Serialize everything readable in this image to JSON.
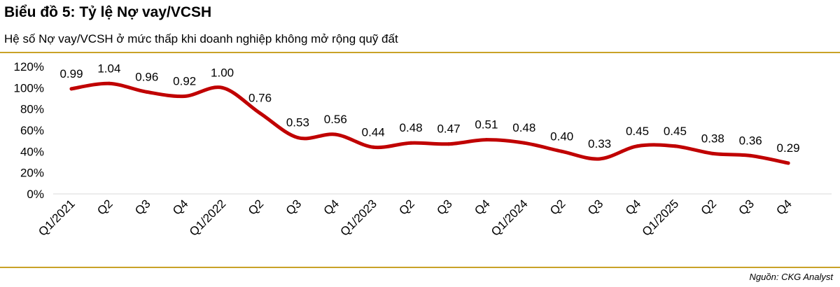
{
  "title": "Biểu đồ 5: Tỷ lệ Nợ vay/VCSH",
  "subtitle": "Hệ số Nợ vay/VCSH ở mức thấp khi doanh nghiệp không mở rộng quỹ đất",
  "source": "Nguồn: CKG Analyst",
  "colors": {
    "line": "#c00000",
    "rule": "#c9a227"
  },
  "chart_data": {
    "type": "line",
    "categories": [
      "Q1/2021",
      "Q2",
      "Q3",
      "Q4",
      "Q1/2022",
      "Q2",
      "Q3",
      "Q4",
      "Q1/2023",
      "Q2",
      "Q3",
      "Q4",
      "Q1/2024",
      "Q2",
      "Q3",
      "Q4",
      "Q1/2025",
      "Q2",
      "Q3",
      "Q4"
    ],
    "values": [
      0.99,
      1.04,
      0.96,
      0.92,
      1.0,
      0.76,
      0.53,
      0.56,
      0.44,
      0.48,
      0.47,
      0.51,
      0.48,
      0.4,
      0.33,
      0.45,
      0.45,
      0.38,
      0.36,
      0.29
    ],
    "data_labels": [
      "0.99",
      "1.04",
      "0.96",
      "0.92",
      "1.00",
      "0.76",
      "0.53",
      "0.56",
      "0.44",
      "0.48",
      "0.47",
      "0.51",
      "0.48",
      "0.40",
      "0.33",
      "0.45",
      "0.45",
      "0.38",
      "0.36",
      "0.29"
    ],
    "y_ticks": [
      "0%",
      "20%",
      "40%",
      "60%",
      "80%",
      "100%",
      "120%"
    ],
    "y_tick_values": [
      0,
      0.2,
      0.4,
      0.6,
      0.8,
      1.0,
      1.2
    ],
    "ylim": [
      0,
      1.2
    ],
    "grid": false,
    "legend": "none"
  }
}
